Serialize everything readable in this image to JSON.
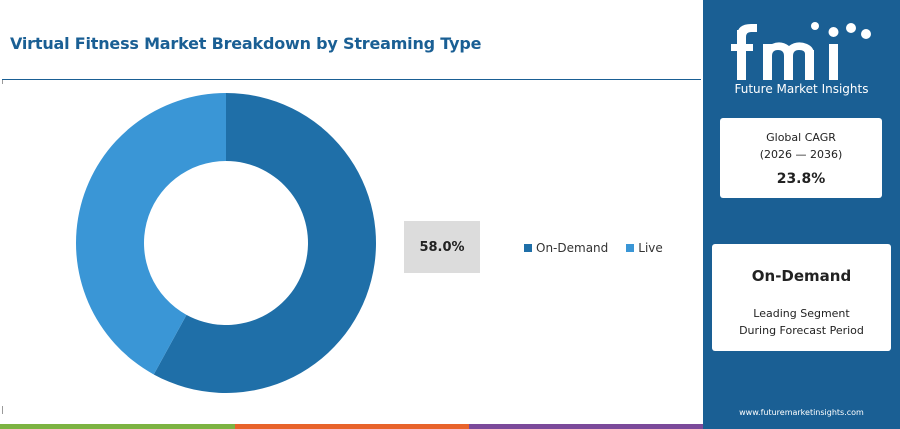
{
  "chart_data": {
    "type": "pie",
    "title": "Virtual Fitness Market Breakdown by Streaming Type",
    "categories": [
      "On-Demand",
      "Live"
    ],
    "values": [
      58.0,
      42.0
    ],
    "colors": [
      "#1f6fa8",
      "#3a96d6"
    ],
    "highlight_label": "58.0%",
    "legend_position": "right",
    "donut": true
  },
  "colors": {
    "brand": "#1a5f94",
    "bottom_bar": [
      "#7cb342",
      "#e8632b",
      "#7b4a9a"
    ]
  },
  "sidebar": {
    "logo_text": "fmi",
    "logo_subtitle": "Future Market Insights",
    "cagr": {
      "label": "Global CAGR",
      "period": "(2026 — 2036)",
      "value": "23.8%"
    },
    "segment": {
      "name": "On-Demand",
      "line1": "Leading Segment",
      "line2": "During Forecast Period"
    },
    "website": "www.futuremarketinsights.com"
  }
}
